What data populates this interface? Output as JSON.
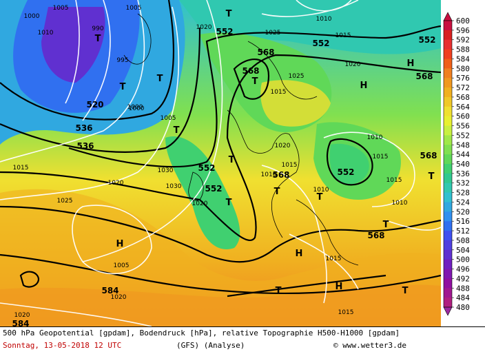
{
  "footer": {
    "line1": "500 hPa Geopotential [gpdam], Bodendruck [hPa], relative Topographie H500-H1000 [gpdam]",
    "date": "Sonntag, 13-05-2018  12 UTC",
    "model": "(GFS)  (Analyse)",
    "copyright": "© www.wetter3.de"
  },
  "legend": {
    "unit": "gpdam",
    "values": [
      "600",
      "596",
      "592",
      "588",
      "584",
      "580",
      "576",
      "572",
      "568",
      "564",
      "560",
      "556",
      "552",
      "548",
      "544",
      "540",
      "536",
      "532",
      "528",
      "524",
      "520",
      "516",
      "512",
      "508",
      "504",
      "500",
      "496",
      "492",
      "488",
      "484",
      "480"
    ],
    "colors": [
      "#c81040",
      "#d82020",
      "#e83030",
      "#f04020",
      "#f06018",
      "#f08020",
      "#f09820",
      "#f0b020",
      "#f0c828",
      "#f0e030",
      "#e8f030",
      "#c8f040",
      "#a0e848",
      "#80e050",
      "#60d858",
      "#40d070",
      "#30c890",
      "#30c8b0",
      "#30c0d0",
      "#30a8e0",
      "#3090f0",
      "#3070f0",
      "#4050f0",
      "#5040e0",
      "#6030d0",
      "#7020c0",
      "#8018b0",
      "#9010a0",
      "#a01890",
      "#b02080",
      "#9c2aa0"
    ]
  },
  "map_labels": {
    "geopotential": [
      "552",
      "552",
      "536",
      "520",
      "536",
      "552",
      "568",
      "568",
      "552",
      "568",
      "552",
      "568",
      "552",
      "568",
      "584",
      "584",
      "568"
    ],
    "pressure": [
      "1005",
      "1005",
      "1000",
      "1010",
      "990",
      "995",
      "1000",
      "1005",
      "1020",
      "1025",
      "1015",
      "1010",
      "1015",
      "1020",
      "1025",
      "1030",
      "1030",
      "1020",
      "1010",
      "1015",
      "1015",
      "1010",
      "1020",
      "1015",
      "1020",
      "1015",
      "1010",
      "1010",
      "1015",
      "1015",
      "1020",
      "1025",
      "1000",
      "1005",
      "1020"
    ],
    "highs": [
      "H",
      "H",
      "H",
      "H",
      "H"
    ],
    "lows": [
      "T",
      "T",
      "T",
      "T",
      "T",
      "T",
      "T",
      "T",
      "T",
      "T",
      "T",
      "T",
      "T",
      "T"
    ]
  }
}
